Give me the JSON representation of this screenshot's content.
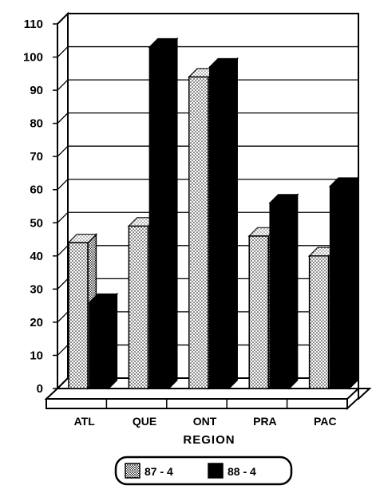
{
  "chart_data": {
    "type": "bar",
    "style": "3d",
    "categories": [
      "ATL",
      "QUE",
      "ONT",
      "PRA",
      "PAC"
    ],
    "series": [
      {
        "name": "87 - 4",
        "values": [
          44,
          49,
          94,
          46,
          40
        ],
        "pattern": "stippled"
      },
      {
        "name": "88 - 4",
        "values": [
          26,
          103,
          97,
          56,
          61
        ],
        "pattern": "solid",
        "color": "#000000"
      }
    ],
    "xlabel": "REGION",
    "ylabel": "",
    "ylim": [
      0,
      110
    ],
    "yticks": [
      0,
      10,
      20,
      30,
      40,
      50,
      60,
      70,
      80,
      90,
      100,
      110
    ],
    "grid": true,
    "legend_position": "bottom-center"
  }
}
